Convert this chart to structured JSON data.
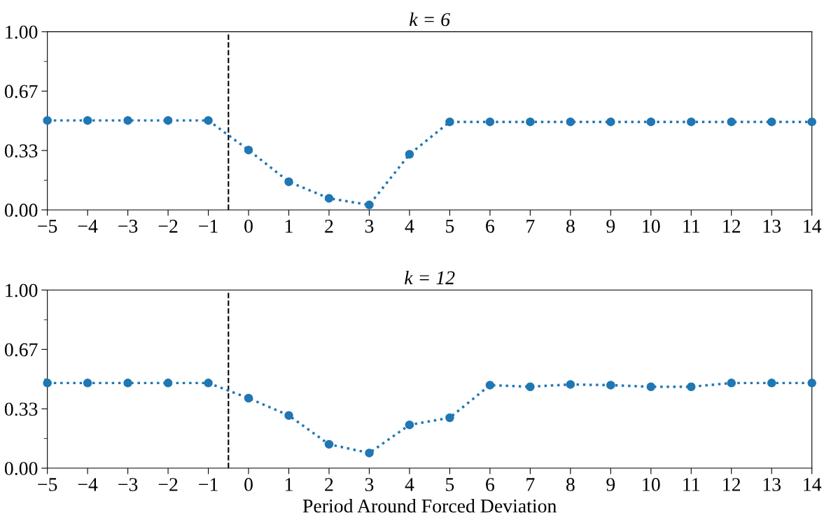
{
  "chart_data": [
    {
      "type": "line",
      "title": "k = 6",
      "x": [
        -5,
        -4,
        -3,
        -2,
        -1,
        0,
        1,
        2,
        3,
        4,
        5,
        6,
        7,
        8,
        9,
        10,
        11,
        12,
        13,
        14
      ],
      "series": [
        {
          "color": "#1f77b4",
          "values": [
            0.502,
            0.502,
            0.502,
            0.502,
            0.502,
            0.336,
            0.158,
            0.065,
            0.028,
            0.312,
            0.494,
            0.494,
            0.494,
            0.494,
            0.494,
            0.494,
            0.494,
            0.494,
            0.494,
            0.494
          ]
        }
      ],
      "xlim": [
        -5,
        14
      ],
      "xticks": [
        {
          "value": -5,
          "label": "−5"
        },
        {
          "value": -4,
          "label": "−4"
        },
        {
          "value": -3,
          "label": "−3"
        },
        {
          "value": -2,
          "label": "−2"
        },
        {
          "value": -1,
          "label": "−1"
        },
        0,
        1,
        2,
        3,
        4,
        5,
        6,
        7,
        8,
        9,
        10,
        11,
        12,
        13,
        14
      ],
      "ylim": [
        0,
        1
      ],
      "yticks": [
        {
          "value": 0,
          "label": "0.00"
        },
        {
          "value": 0.1667,
          "label": null
        },
        {
          "value": 0.3333,
          "label": "0.33"
        },
        {
          "value": 0.5,
          "label": null
        },
        {
          "value": 0.6667,
          "label": "0.67"
        },
        {
          "value": 0.8333,
          "label": null
        },
        {
          "value": 1,
          "label": "1.00"
        }
      ],
      "ref_lines": [
        {
          "axis": "x",
          "value": -0.5,
          "color": "#000000",
          "line_style": "dashed"
        }
      ],
      "marker": "circle",
      "line_style": "dotted",
      "grid": false,
      "legend": false
    },
    {
      "type": "line",
      "title": "k = 12",
      "xlabel": "Period Around Forced Deviation",
      "x": [
        -5,
        -4,
        -3,
        -2,
        -1,
        0,
        1,
        2,
        3,
        4,
        5,
        6,
        7,
        8,
        9,
        10,
        11,
        12,
        13,
        14
      ],
      "series": [
        {
          "color": "#1f77b4",
          "values": [
            0.478,
            0.478,
            0.478,
            0.478,
            0.478,
            0.393,
            0.296,
            0.134,
            0.085,
            0.243,
            0.283,
            0.466,
            0.457,
            0.47,
            0.466,
            0.457,
            0.457,
            0.478,
            0.478,
            0.478
          ]
        }
      ],
      "xlim": [
        -5,
        14
      ],
      "xticks": [
        {
          "value": -5,
          "label": "−5"
        },
        {
          "value": -4,
          "label": "−4"
        },
        {
          "value": -3,
          "label": "−3"
        },
        {
          "value": -2,
          "label": "−2"
        },
        {
          "value": -1,
          "label": "−1"
        },
        0,
        1,
        2,
        3,
        4,
        5,
        6,
        7,
        8,
        9,
        10,
        11,
        12,
        13,
        14
      ],
      "ylim": [
        0,
        1
      ],
      "yticks": [
        {
          "value": 0,
          "label": "0.00"
        },
        {
          "value": 0.1667,
          "label": null
        },
        {
          "value": 0.3333,
          "label": "0.33"
        },
        {
          "value": 0.5,
          "label": null
        },
        {
          "value": 0.6667,
          "label": "0.67"
        },
        {
          "value": 0.8333,
          "label": null
        },
        {
          "value": 1,
          "label": "1.00"
        }
      ],
      "ref_lines": [
        {
          "axis": "x",
          "value": -0.5,
          "color": "#000000",
          "line_style": "dashed"
        }
      ],
      "marker": "circle",
      "line_style": "dotted",
      "grid": false,
      "legend": false
    }
  ]
}
